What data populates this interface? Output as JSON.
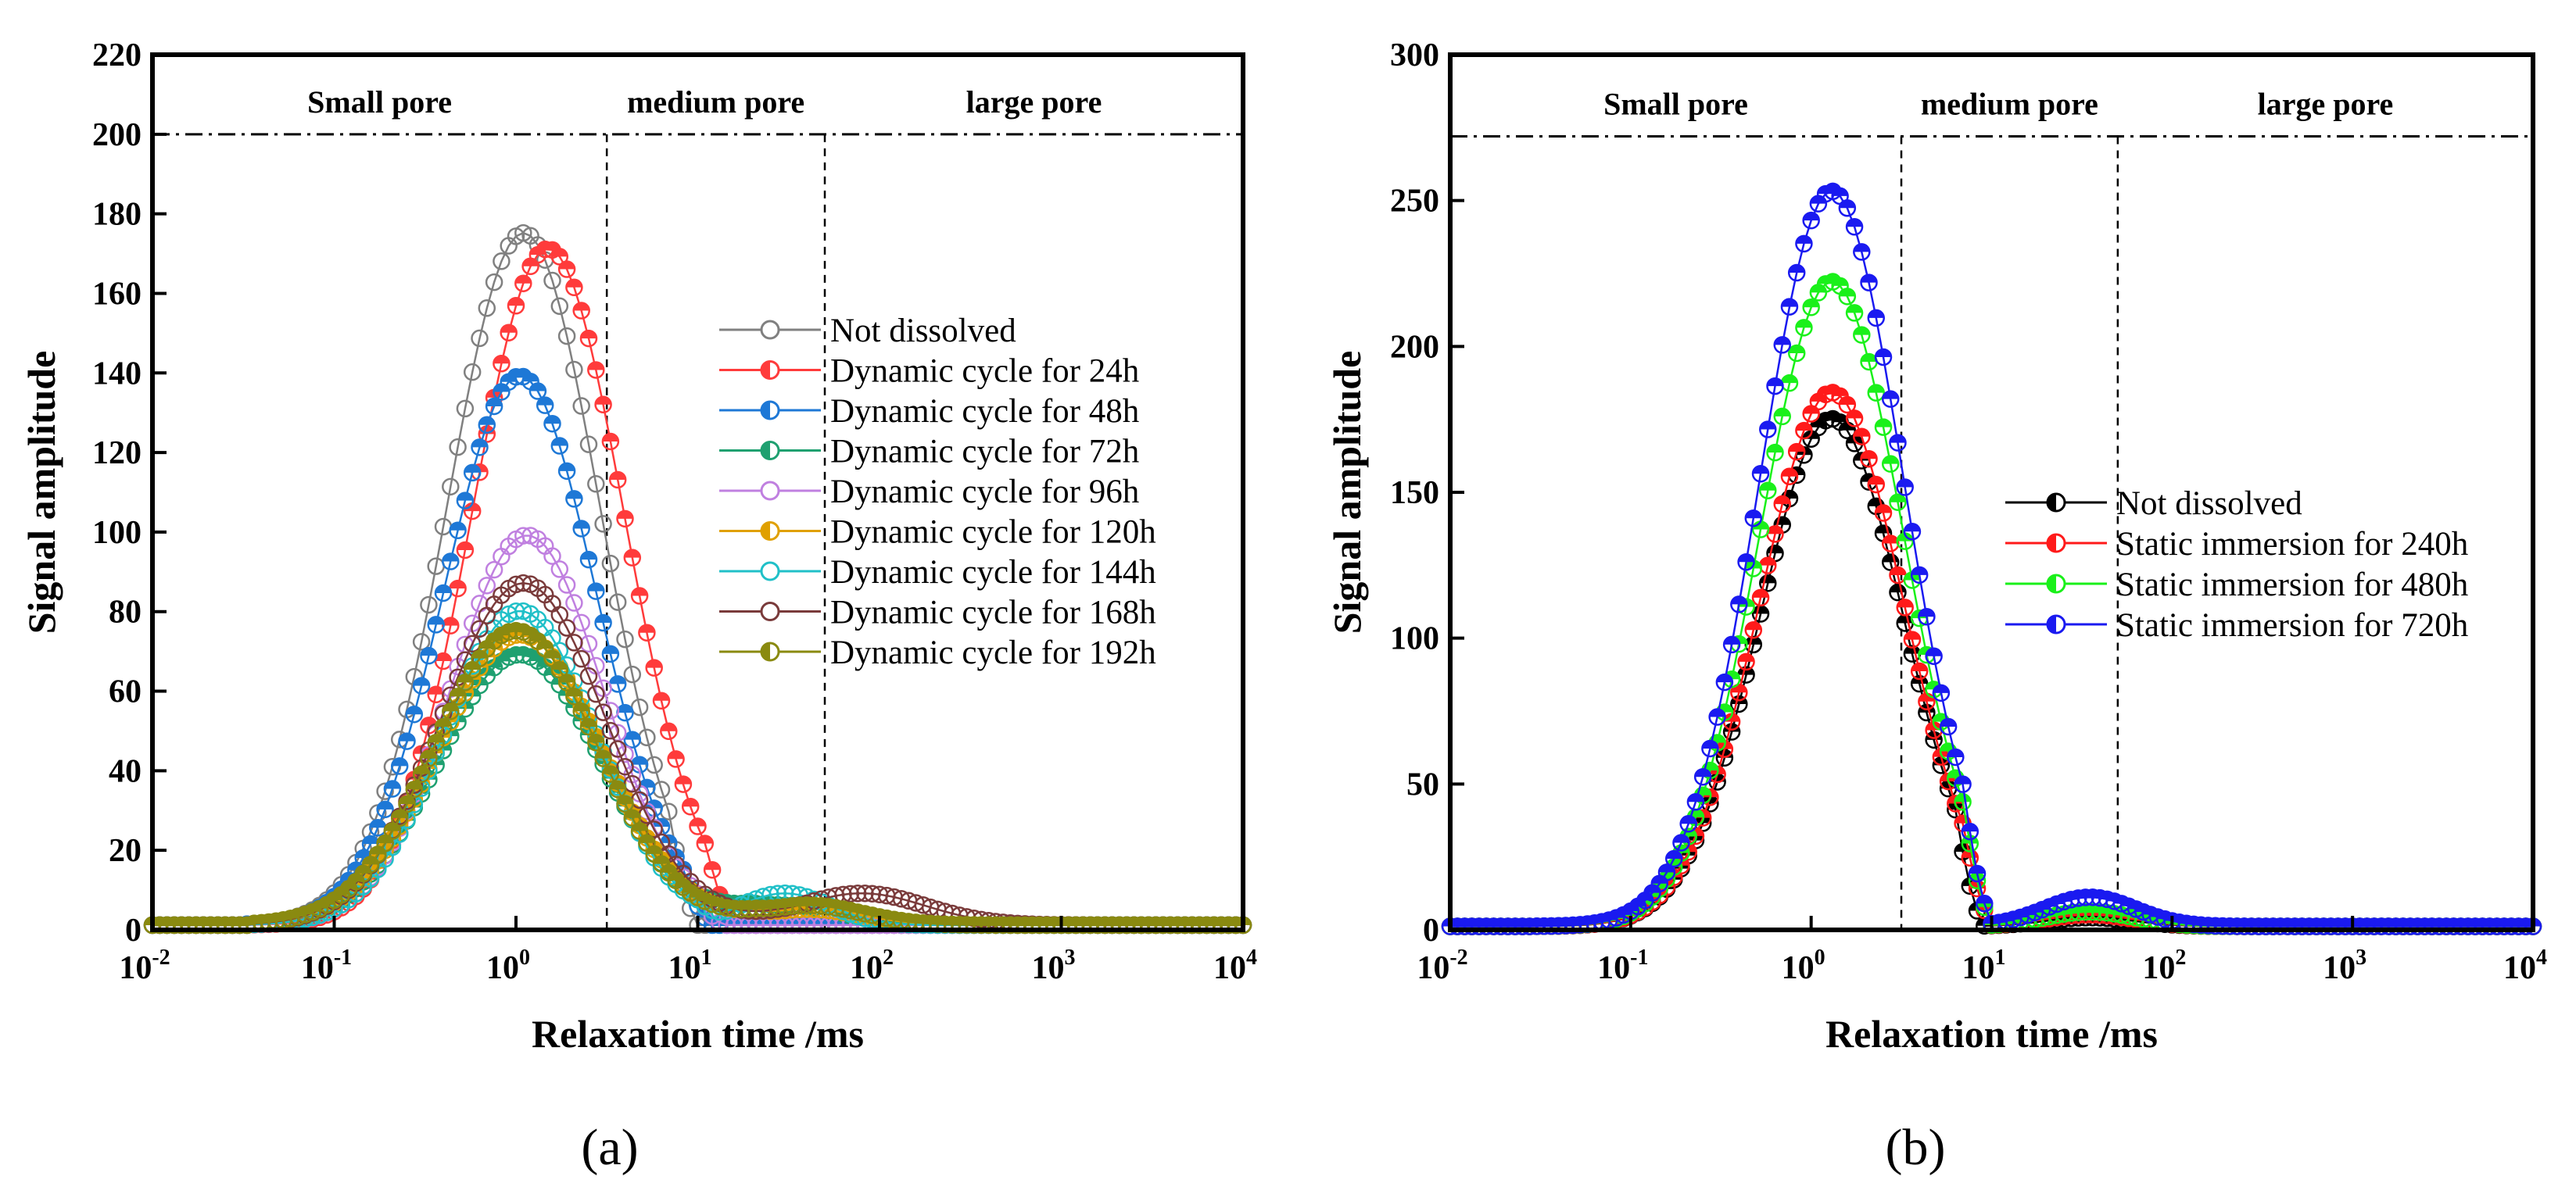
{
  "chart_data": [
    {
      "type": "line",
      "panel_label": "(a)",
      "xscale": "log",
      "xlim": [
        0.01,
        10000
      ],
      "ylim": [
        0,
        220
      ],
      "x_ticks": [
        0.01,
        0.1,
        1,
        10,
        100,
        1000,
        10000
      ],
      "x_tick_exponents": [
        "-2",
        "-1",
        "0",
        "1",
        "2",
        "3",
        "4"
      ],
      "y_ticks": [
        0,
        20,
        40,
        60,
        80,
        100,
        120,
        140,
        160,
        180,
        200,
        220
      ],
      "xlabel": "Relaxation time /ms",
      "ylabel": "Signal amplitude",
      "tick_base": "10",
      "region_labels": [
        "Small pore",
        "medium pore",
        "large pore"
      ],
      "region_boundaries_ms": [
        3.16,
        50
      ],
      "reference_line_y": 200,
      "legend_position": "right",
      "series": [
        {
          "name": "Not dissolved",
          "color": "#808080",
          "peak_x": 1.1,
          "peak_y": 174,
          "width": 0.42,
          "onset": 0.045,
          "cutoff": 10,
          "marker": "open",
          "bump": null
        },
        {
          "name": "Dynamic cycle for 24h",
          "color": "#FF3B3B",
          "peak_x": 1.5,
          "peak_y": 170,
          "width": 0.42,
          "onset": 0.045,
          "cutoff": 16,
          "marker": "half",
          "bump": null
        },
        {
          "name": "Dynamic cycle for 48h",
          "color": "#1E78D6",
          "peak_x": 1.05,
          "peak_y": 138,
          "width": 0.42,
          "onset": 0.045,
          "cutoff": 12,
          "marker": "half",
          "bump": null
        },
        {
          "name": "Dynamic cycle for 72h",
          "color": "#1FA070",
          "peak_x": 1.05,
          "peak_y": 68,
          "width": 0.45,
          "onset": 0.05,
          "cutoff": 30,
          "marker": "half",
          "bump": [
            30,
            5,
            0.3
          ]
        },
        {
          "name": "Dynamic cycle for 96h",
          "color": "#C080E0",
          "peak_x": 1.15,
          "peak_y": 98,
          "width": 0.42,
          "onset": 0.05,
          "cutoff": 14,
          "marker": "open",
          "bump": null
        },
        {
          "name": "Dynamic cycle for 120h",
          "color": "#E0A000",
          "peak_x": 1.05,
          "peak_y": 73,
          "width": 0.45,
          "onset": 0.05,
          "cutoff": 30,
          "marker": "half",
          "bump": [
            40,
            4,
            0.3
          ]
        },
        {
          "name": "Dynamic cycle for 144h",
          "color": "#20C0C8",
          "peak_x": 1.05,
          "peak_y": 79,
          "width": 0.42,
          "onset": 0.05,
          "cutoff": 14,
          "marker": "open",
          "bump": [
            30,
            8,
            0.25
          ]
        },
        {
          "name": "Dynamic cycle for 168h",
          "color": "#7A3B3B",
          "peak_x": 1.1,
          "peak_y": 86,
          "width": 0.45,
          "onset": 0.05,
          "cutoff": 40,
          "marker": "open",
          "bump": [
            80,
            8,
            0.35
          ]
        },
        {
          "name": "Dynamic cycle for 192h",
          "color": "#8A8A10",
          "peak_x": 1.0,
          "peak_y": 74,
          "width": 0.45,
          "onset": 0.05,
          "cutoff": 30,
          "marker": "half",
          "bump": [
            40,
            5,
            0.3
          ]
        }
      ]
    },
    {
      "type": "line",
      "panel_label": "(b)",
      "xscale": "log",
      "xlim": [
        0.01,
        10000
      ],
      "ylim": [
        0,
        300
      ],
      "x_ticks": [
        0.01,
        0.1,
        1,
        10,
        100,
        1000,
        10000
      ],
      "x_tick_exponents": [
        "-2",
        "-1",
        "0",
        "1",
        "2",
        "3",
        "4"
      ],
      "y_ticks": [
        0,
        50,
        100,
        150,
        200,
        250,
        300
      ],
      "xlabel": "Relaxation time /ms",
      "ylabel": "Signal amplitude",
      "tick_base": "10",
      "region_labels": [
        "Small pore",
        "medium pore",
        "large pore"
      ],
      "region_boundaries_ms": [
        3.16,
        50
      ],
      "reference_line_y": 272,
      "legend_position": "right",
      "series": [
        {
          "name": "Not dissolved",
          "color": "#000000",
          "peak_x": 1.3,
          "peak_y": 174,
          "width": 0.4,
          "onset": 0.04,
          "cutoff": 9,
          "marker": "half",
          "bump": [
            35,
            3,
            0.25
          ]
        },
        {
          "name": "Static immersion for 240h",
          "color": "#FF1A1A",
          "peak_x": 1.3,
          "peak_y": 183,
          "width": 0.4,
          "onset": 0.04,
          "cutoff": 10,
          "marker": "half",
          "bump": [
            35,
            4,
            0.25
          ]
        },
        {
          "name": "Static immersion for 480h",
          "color": "#1AF01A",
          "peak_x": 1.3,
          "peak_y": 221,
          "width": 0.4,
          "onset": 0.04,
          "cutoff": 10,
          "marker": "half",
          "bump": [
            35,
            5,
            0.25
          ]
        },
        {
          "name": "Static immersion for 720h",
          "color": "#1A1AF0",
          "peak_x": 1.3,
          "peak_y": 252,
          "width": 0.4,
          "onset": 0.04,
          "cutoff": 10,
          "marker": "half",
          "bump": [
            35,
            10,
            0.25
          ]
        }
      ]
    }
  ]
}
